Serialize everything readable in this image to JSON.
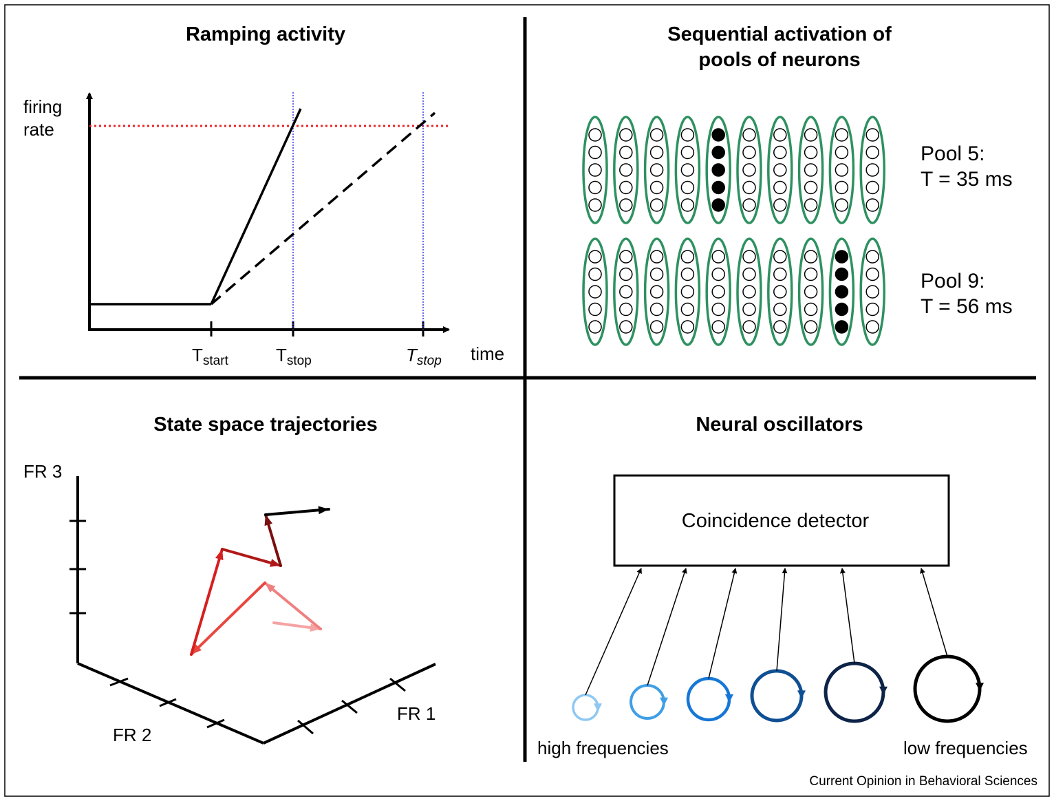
{
  "panels": {
    "ramping": {
      "title": "Ramping activity",
      "y_label_line1": "firing",
      "y_label_line2": "rate",
      "x_label": "time",
      "ticks": [
        {
          "main": "T",
          "sub": "start",
          "italic": false
        },
        {
          "main": "T",
          "sub": "stop",
          "italic": false
        },
        {
          "main": "T",
          "sub": "stop",
          "italic": true
        }
      ],
      "threshold_color": "#e8262a",
      "stop_line_color": "#3a3adf"
    },
    "sequential": {
      "title_line1": "Sequential activation of",
      "title_line2": "pools of neurons",
      "pool_count": 10,
      "neurons_per_pool": 5,
      "rows": [
        {
          "active_pool": 5,
          "label_line1": "Pool 5:",
          "label_line2": "T = 35 ms"
        },
        {
          "active_pool": 9,
          "label_line1": "Pool 9:",
          "label_line2": "T = 56 ms"
        }
      ],
      "pool_color": "#2e9160"
    },
    "state_space": {
      "title": "State space trajectories",
      "axis_labels": {
        "fr1": "FR 1",
        "fr2": "FR 2",
        "fr3": "FR 3"
      },
      "trajectory_colors": [
        "#f5a3a3",
        "#f08080",
        "#e8473f",
        "#d61f1f",
        "#b01818",
        "#7a0f0f",
        "#000000"
      ]
    },
    "oscillators": {
      "title": "Neural oscillators",
      "box_label": "Coincidence detector",
      "left_label": "high frequencies",
      "right_label": "low frequencies",
      "oscillator_colors": [
        "#8ec8f2",
        "#3f9fe6",
        "#1677d6",
        "#0f4f93",
        "#0d2347",
        "#000000"
      ]
    }
  },
  "credit": "Current Opinion in Behavioral Sciences"
}
